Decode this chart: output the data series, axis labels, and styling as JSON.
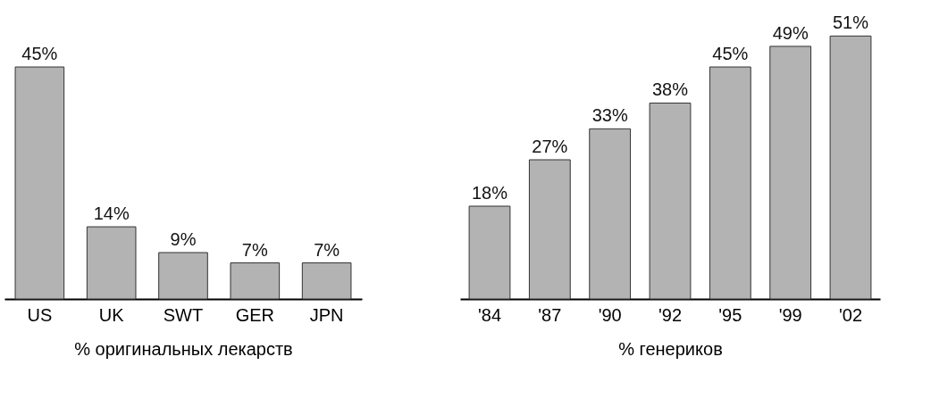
{
  "chart_data": [
    {
      "type": "bar",
      "xlabel": "% оригинальных лекарств",
      "categories": [
        "US",
        "UK",
        "SWT",
        "GER",
        "JPN"
      ],
      "values": [
        45,
        14,
        9,
        7,
        7
      ],
      "value_labels": [
        "45%",
        "14%",
        "9%",
        "7%",
        "7%"
      ],
      "color": "#b3b3b3",
      "tick_labels": "x"
    },
    {
      "type": "bar",
      "xlabel": "% генериков",
      "categories": [
        "'84",
        "'87",
        "'90",
        "'92",
        "'95",
        "'99",
        "'02"
      ],
      "values": [
        18,
        27,
        33,
        38,
        45,
        49,
        51
      ],
      "value_labels": [
        "18%",
        "27%",
        "33%",
        "38%",
        "45%",
        "49%",
        "51%"
      ],
      "color": "#b3b3b3",
      "tick_labels": "x"
    }
  ]
}
